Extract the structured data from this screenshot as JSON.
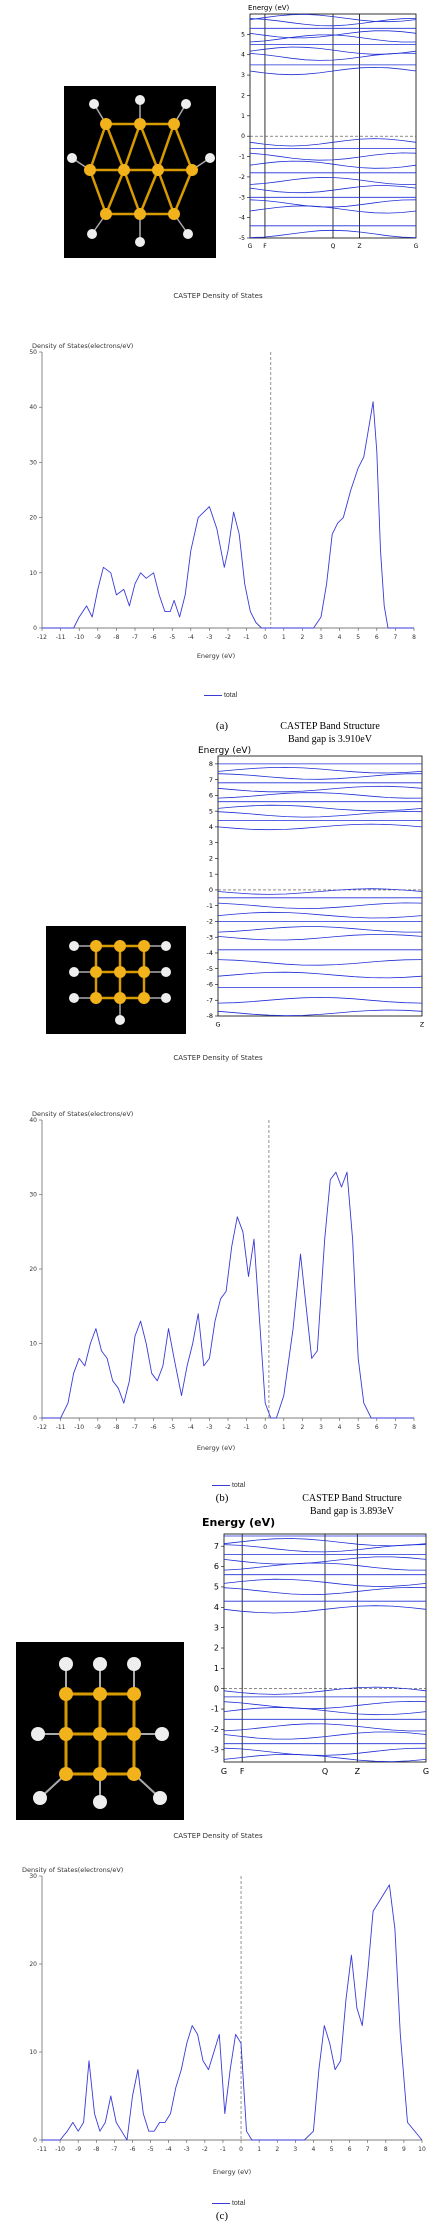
{
  "panels": [
    {
      "caption": "(a)",
      "band": {
        "title": "",
        "gap": "",
        "ylabel": "Energy (eV)",
        "yticks": [
          "-5",
          "-4",
          "-3",
          "-2",
          "-1",
          "0",
          "1",
          "2",
          "3",
          "4",
          "5"
        ],
        "kpoints": [
          "G",
          "F",
          "Q",
          "Z",
          "G"
        ],
        "kpos": [
          0,
          0.09,
          0.5,
          0.66,
          1
        ]
      },
      "dos_header": "CASTEP Density of States",
      "dos": {
        "ylabel": "Density of States(electrons/eV)",
        "xlabel": "Energy (eV)",
        "xticks": [
          "-12",
          "-11",
          "-10",
          "-9",
          "-8",
          "-7",
          "-6",
          "-5",
          "-4",
          "-3",
          "-2",
          "-1",
          "0",
          "1",
          "2",
          "3",
          "4",
          "5",
          "6",
          "7",
          "8"
        ],
        "yticks": [
          "0",
          "10",
          "20",
          "30",
          "40",
          "50"
        ],
        "fermi": 0.3,
        "legend": "total"
      }
    },
    {
      "caption": "(b)",
      "band": {
        "title": "CASTEP Band Structure",
        "gap": "Band gap is 3.910eV",
        "ylabel": "Energy (eV)",
        "yticks": [
          "-8",
          "-7",
          "-6",
          "-5",
          "-4",
          "-3",
          "-2",
          "-1",
          "0",
          "1",
          "2",
          "3",
          "4",
          "5",
          "6",
          "7",
          "8"
        ],
        "kpoints": [
          "G",
          "Z"
        ],
        "kpos": [
          0,
          1
        ]
      },
      "dos_header": "CASTEP Density of States",
      "dos": {
        "ylabel": "Density of States(electrons/eV)",
        "xlabel": "Energy (eV)",
        "xticks": [
          "-12",
          "-11",
          "-10",
          "-9",
          "-8",
          "-7",
          "-6",
          "-5",
          "-4",
          "-3",
          "-2",
          "-1",
          "0",
          "1",
          "2",
          "3",
          "4",
          "5",
          "6",
          "7",
          "8"
        ],
        "yticks": [
          "0",
          "10",
          "20",
          "30",
          "40"
        ],
        "fermi": 0.2,
        "legend": "total"
      }
    },
    {
      "caption": "(c)",
      "band": {
        "title": "CASTEP Band Structure",
        "gap": "Band gap is 3.893eV",
        "ylabel": "Energy (eV)",
        "yticks": [
          "-3",
          "-2",
          "-1",
          "0",
          "1",
          "2",
          "3",
          "4",
          "5",
          "6",
          "7"
        ],
        "kpoints": [
          "G",
          "F",
          "Q",
          "Z",
          "G"
        ],
        "kpos": [
          0,
          0.09,
          0.5,
          0.66,
          1
        ]
      },
      "dos_header": "CASTEP Density of States",
      "dos": {
        "ylabel": "Density of States(electrons/eV)",
        "xlabel": "Energy (eV)",
        "xticks": [
          "-11",
          "-10",
          "-9",
          "-8",
          "-7",
          "-6",
          "-5",
          "-4",
          "-3",
          "-2",
          "-1",
          "0",
          "1",
          "2",
          "3",
          "4",
          "5",
          "6",
          "7",
          "8",
          "9",
          "10"
        ],
        "yticks": [
          "0",
          "10",
          "20",
          "30"
        ],
        "fermi": 0.0,
        "legend": "total"
      }
    }
  ],
  "chart_data": [
    {
      "type": "line",
      "title": "CASTEP Density of States",
      "xlabel": "Energy (eV)",
      "ylabel": "Density of States(electrons/eV)",
      "xlim": [
        -12,
        8
      ],
      "ylim": [
        0,
        50
      ],
      "grid": false,
      "legend": "bottom-left",
      "series": [
        {
          "name": "total",
          "x": [
            -12,
            -11,
            -10.3,
            -10,
            -9.6,
            -9.3,
            -9,
            -8.7,
            -8.3,
            -8,
            -7.6,
            -7.3,
            -7,
            -6.7,
            -6.4,
            -6,
            -5.7,
            -5.4,
            -5.1,
            -4.9,
            -4.6,
            -4.3,
            -4.0,
            -3.6,
            -3.3,
            -3,
            -2.6,
            -2.2,
            -2,
            -1.7,
            -1.4,
            -1.1,
            -0.8,
            -0.5,
            -0.2,
            0,
            0.5,
            1,
            2,
            2.6,
            3,
            3.3,
            3.6,
            3.9,
            4.2,
            4.6,
            5,
            5.3,
            5.6,
            5.8,
            6.0,
            6.2,
            6.4,
            6.6,
            7,
            8
          ],
          "y": [
            0,
            0,
            0,
            2,
            4,
            2,
            7,
            11,
            10,
            6,
            7,
            4,
            8,
            10,
            9,
            10,
            6,
            3,
            3,
            5,
            2,
            6,
            14,
            20,
            21,
            22,
            18,
            11,
            14,
            21,
            17,
            8,
            3,
            1,
            0,
            0,
            0,
            0,
            0,
            0,
            2,
            8,
            17,
            19,
            20,
            25,
            29,
            31,
            37,
            41,
            32,
            14,
            4,
            0,
            0,
            0
          ]
        }
      ]
    },
    {
      "type": "line",
      "title": "CASTEP Density of States",
      "xlabel": "Energy (eV)",
      "ylabel": "Density of States(electrons/eV)",
      "xlim": [
        -12,
        8
      ],
      "ylim": [
        0,
        40
      ],
      "grid": false,
      "legend": "bottom-left",
      "series": [
        {
          "name": "total",
          "x": [
            -12,
            -11,
            -10.6,
            -10.3,
            -10,
            -9.7,
            -9.4,
            -9.1,
            -8.8,
            -8.5,
            -8.2,
            -7.9,
            -7.6,
            -7.3,
            -7,
            -6.7,
            -6.4,
            -6.1,
            -5.8,
            -5.5,
            -5.2,
            -4.9,
            -4.5,
            -4.2,
            -3.9,
            -3.6,
            -3.3,
            -3,
            -2.7,
            -2.4,
            -2.1,
            -1.8,
            -1.5,
            -1.2,
            -0.9,
            -0.6,
            -0.3,
            0,
            0.3,
            0.6,
            1,
            1.5,
            1.9,
            2.2,
            2.5,
            2.8,
            3.2,
            3.5,
            3.8,
            4.1,
            4.4,
            4.7,
            5,
            5.3,
            5.7,
            6,
            8
          ],
          "y": [
            0,
            0,
            2,
            6,
            8,
            7,
            10,
            12,
            9,
            8,
            5,
            4,
            2,
            5,
            11,
            13,
            10,
            6,
            5,
            7,
            12,
            8,
            3,
            7,
            10,
            14,
            7,
            8,
            13,
            16,
            17,
            23,
            27,
            25,
            19,
            24,
            13,
            2,
            0,
            0,
            3,
            12,
            22,
            15,
            8,
            9,
            24,
            32,
            33,
            31,
            33,
            24,
            8,
            2,
            0,
            0,
            0
          ]
        }
      ]
    },
    {
      "type": "line",
      "title": "CASTEP Density of States",
      "xlabel": "Energy (eV)",
      "ylabel": "Density of States(electrons/eV)",
      "xlim": [
        -11,
        10
      ],
      "ylim": [
        0,
        30
      ],
      "grid": false,
      "legend": "bottom-left",
      "series": [
        {
          "name": "total",
          "x": [
            -11,
            -10.3,
            -10,
            -9.6,
            -9.3,
            -9,
            -8.7,
            -8.4,
            -8.1,
            -7.8,
            -7.5,
            -7.2,
            -6.9,
            -6.6,
            -6.3,
            -6,
            -5.7,
            -5.4,
            -5.1,
            -4.8,
            -4.5,
            -4.2,
            -3.9,
            -3.6,
            -3.3,
            -3,
            -2.7,
            -2.4,
            -2.1,
            -1.8,
            -1.5,
            -1.2,
            -0.9,
            -0.6,
            -0.3,
            0,
            0.3,
            0.6,
            1,
            2,
            3,
            3.5,
            4,
            4.3,
            4.6,
            4.9,
            5.2,
            5.5,
            5.8,
            6.1,
            6.4,
            6.7,
            7,
            7.3,
            7.6,
            7.9,
            8.2,
            8.5,
            8.8,
            9.2,
            10
          ],
          "y": [
            0,
            0,
            0,
            1,
            2,
            1,
            2,
            9,
            3,
            1,
            2,
            5,
            2,
            1,
            0,
            5,
            8,
            3,
            1,
            1,
            2,
            2,
            3,
            6,
            8,
            11,
            13,
            12,
            9,
            8,
            10,
            12,
            3,
            8,
            12,
            11,
            1,
            0,
            0,
            0,
            0,
            0,
            1,
            8,
            13,
            11,
            8,
            9,
            16,
            21,
            15,
            13,
            19,
            26,
            27,
            28,
            29,
            24,
            12,
            2,
            0
          ]
        }
      ]
    }
  ]
}
